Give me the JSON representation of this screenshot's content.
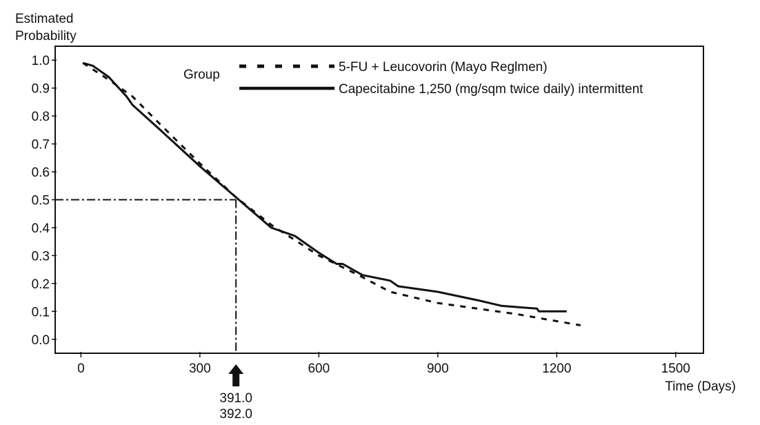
{
  "chart_data": {
    "type": "line",
    "title": "",
    "ylabel_line1": "Estimated",
    "ylabel_line2": "Probability",
    "xlabel": "Time (Days)",
    "xlim": [
      -65,
      1570
    ],
    "ylim": [
      -0.05,
      1.05
    ],
    "xticks": [
      0,
      300,
      600,
      900,
      1200,
      1500
    ],
    "yticks": [
      0.0,
      0.1,
      0.2,
      0.3,
      0.4,
      0.5,
      0.6,
      0.7,
      0.8,
      0.9,
      1.0
    ],
    "ytick_labels": [
      "0.0",
      "0.1",
      "0.2",
      "0.3",
      "0.4",
      "0.5",
      "0.6",
      "0.7",
      "0.8",
      "0.9",
      "1.0"
    ],
    "grid": false,
    "legend_title": "Group",
    "legend_position": "top-right",
    "series": [
      {
        "name": "5-FU + Leucovorin (Mayo Reglmen)",
        "style": "dashed",
        "x": [
          5,
          70,
          130,
          200,
          300,
          390,
          480,
          600,
          700,
          780,
          900,
          1000,
          1100,
          1180,
          1260
        ],
        "y": [
          0.99,
          0.93,
          0.87,
          0.77,
          0.63,
          0.51,
          0.41,
          0.3,
          0.23,
          0.17,
          0.13,
          0.11,
          0.09,
          0.07,
          0.05
        ]
      },
      {
        "name": "Capecitabine 1,250 (mg/sqm twice daily) intermittent",
        "style": "solid",
        "x": [
          5,
          30,
          70,
          115,
          130,
          200,
          300,
          390,
          480,
          540,
          600,
          645,
          660,
          710,
          780,
          800,
          900,
          1000,
          1060,
          1150,
          1155,
          1225
        ],
        "y": [
          0.99,
          0.98,
          0.94,
          0.87,
          0.84,
          0.75,
          0.62,
          0.51,
          0.4,
          0.37,
          0.31,
          0.27,
          0.27,
          0.23,
          0.21,
          0.19,
          0.17,
          0.14,
          0.12,
          0.11,
          0.1,
          0.1
        ]
      }
    ],
    "reference": {
      "y_level": 0.5,
      "x_median": 391.0,
      "labels": [
        "391.0",
        "392.0"
      ]
    }
  }
}
